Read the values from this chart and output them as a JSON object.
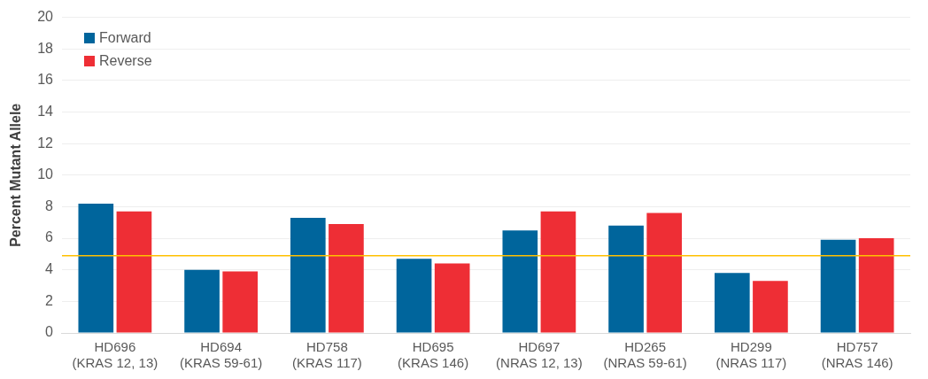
{
  "chart_data": {
    "type": "bar",
    "ylabel": "Percent Mutant Allele",
    "categories": [
      "HD696\n(KRAS 12, 13)",
      "HD694\n(KRAS 59-61)",
      "HD758\n(KRAS 117)",
      "HD695\n(KRAS 146)",
      "HD697\n(NRAS 12, 13)",
      "HD265\n(NRAS 59-61)",
      "HD299\n(NRAS 117)",
      "HD757\n(NRAS 146)"
    ],
    "series": [
      {
        "name": "Forward",
        "color": "#00659c",
        "values": [
          8.2,
          4.0,
          7.3,
          4.7,
          6.5,
          6.8,
          3.8,
          5.9
        ]
      },
      {
        "name": "Reverse",
        "color": "#ee2e35",
        "values": [
          7.7,
          3.9,
          6.9,
          4.4,
          7.7,
          7.6,
          3.3,
          6.0
        ]
      }
    ],
    "ylim": [
      0,
      20
    ],
    "yticks": [
      0,
      2,
      4,
      6,
      8,
      10,
      12,
      14,
      16,
      18,
      20
    ],
    "grid": "y",
    "legend": "top left",
    "ref_lines": [
      {
        "axis": "y",
        "value": 4.9,
        "color": "#ffc000"
      }
    ]
  }
}
